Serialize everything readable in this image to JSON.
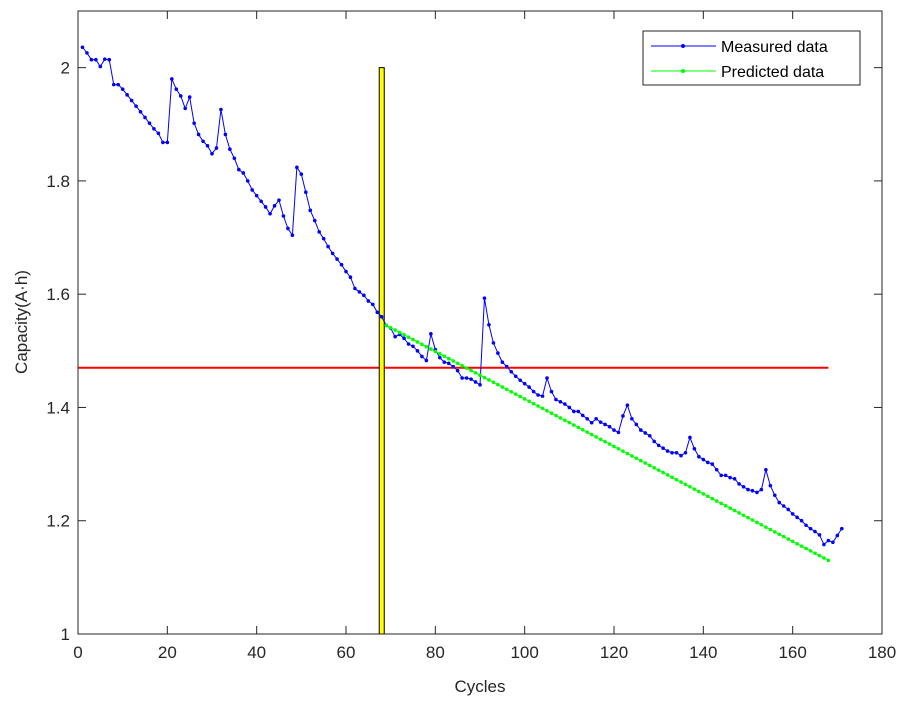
{
  "chart_data": {
    "type": "line",
    "xlabel": "Cycles",
    "ylabel": "Capacity(A·h)",
    "xlim": [
      0,
      180
    ],
    "ylim": [
      1,
      2.1
    ],
    "xticks": [
      0,
      20,
      40,
      60,
      80,
      100,
      120,
      140,
      160,
      180
    ],
    "yticks": [
      1,
      1.2,
      1.4,
      1.6,
      1.8,
      2
    ],
    "ytick_labels": [
      "1",
      "1.2",
      "1.4",
      "1.6",
      "1.8",
      "2"
    ],
    "grid": false,
    "legend_position": "top-right",
    "threshold": {
      "y": 1.47,
      "color": "#ff0000"
    },
    "prediction_start": {
      "x": 68,
      "y_top": 2.0,
      "fill": "#ffff00",
      "stroke": "#000000"
    },
    "series": [
      {
        "name": "Measured data",
        "color": "#0000ff",
        "x_start": 1,
        "y": [
          2.036,
          2.026,
          2.014,
          2.014,
          2.002,
          2.015,
          2.014,
          1.97,
          1.97,
          1.962,
          1.952,
          1.942,
          1.932,
          1.922,
          1.912,
          1.902,
          1.892,
          1.884,
          1.868,
          1.868,
          1.98,
          1.962,
          1.95,
          1.928,
          1.948,
          1.902,
          1.882,
          1.87,
          1.862,
          1.848,
          1.858,
          1.926,
          1.882,
          1.856,
          1.84,
          1.82,
          1.814,
          1.8,
          1.784,
          1.774,
          1.764,
          1.754,
          1.742,
          1.756,
          1.766,
          1.738,
          1.716,
          1.704,
          1.824,
          1.812,
          1.78,
          1.748,
          1.73,
          1.71,
          1.698,
          1.684,
          1.672,
          1.662,
          1.652,
          1.64,
          1.63,
          1.61,
          1.604,
          1.598,
          1.588,
          1.582,
          1.568,
          1.56,
          1.545,
          1.54,
          1.525,
          1.529,
          1.522,
          1.512,
          1.508,
          1.5,
          1.49,
          1.483,
          1.53,
          1.502,
          1.488,
          1.48,
          1.478,
          1.472,
          1.465,
          1.452,
          1.452,
          1.45,
          1.445,
          1.44,
          1.593,
          1.546,
          1.514,
          1.496,
          1.48,
          1.472,
          1.463,
          1.455,
          1.448,
          1.442,
          1.436,
          1.428,
          1.422,
          1.42,
          1.452,
          1.428,
          1.414,
          1.41,
          1.406,
          1.4,
          1.393,
          1.393,
          1.386,
          1.38,
          1.373,
          1.38,
          1.374,
          1.37,
          1.366,
          1.36,
          1.356,
          1.385,
          1.404,
          1.38,
          1.37,
          1.36,
          1.355,
          1.35,
          1.34,
          1.333,
          1.328,
          1.323,
          1.32,
          1.32,
          1.315,
          1.32,
          1.347,
          1.327,
          1.313,
          1.308,
          1.303,
          1.3,
          1.29,
          1.28,
          1.28,
          1.276,
          1.274,
          1.265,
          1.26,
          1.255,
          1.253,
          1.25,
          1.255,
          1.29,
          1.262,
          1.245,
          1.232,
          1.226,
          1.22,
          1.212,
          1.206,
          1.2,
          1.192,
          1.186,
          1.181,
          1.175,
          1.158,
          1.165,
          1.162,
          1.174,
          1.186
        ]
      },
      {
        "name": "Predicted data",
        "color": "#00ff00",
        "x_start": 69,
        "x_end": 168,
        "y_start": 1.545,
        "y_end": 1.13
      }
    ]
  }
}
